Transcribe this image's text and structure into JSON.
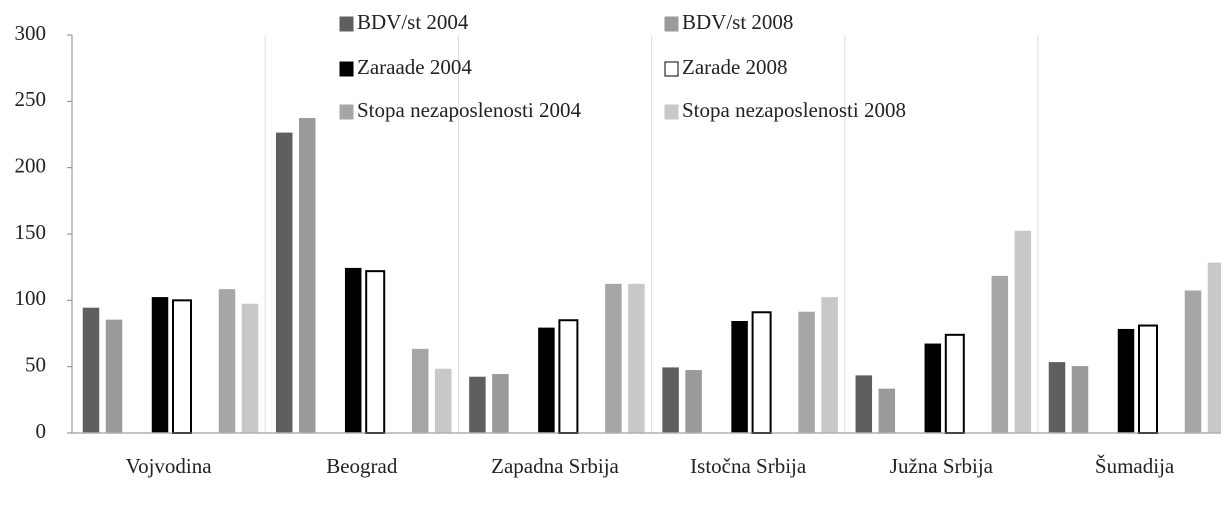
{
  "chart_data": {
    "type": "bar",
    "categories": [
      "Vojvodina",
      "Beograd",
      "Zapadna Srbija",
      "Istočna Srbija",
      "Južna Srbija",
      "Šumadija"
    ],
    "series": [
      {
        "name": "BDV/st 2004",
        "color": "#5f5f5f",
        "values": [
          95,
          227,
          43,
          50,
          44,
          54
        ]
      },
      {
        "name": "BDV/st 2008",
        "color": "#9a9a9a",
        "values": [
          86,
          238,
          45,
          48,
          34,
          51
        ]
      },
      {
        "name": "Zaraade 2004",
        "color": "#000000",
        "values": [
          103,
          125,
          80,
          85,
          68,
          79
        ]
      },
      {
        "name": "Zarade 2008",
        "color": "#ffffff",
        "values": [
          100,
          122,
          85,
          91,
          74,
          81
        ]
      },
      {
        "name": "Stopa nezaposlenosti 2004",
        "color": "#a6a6a6",
        "values": [
          109,
          64,
          113,
          92,
          119,
          108
        ]
      },
      {
        "name": "Stopa nezaposlenosti 2008",
        "color": "#c8c8c8",
        "values": [
          98,
          49,
          113,
          103,
          153,
          129
        ]
      }
    ],
    "ylim": [
      0,
      300
    ],
    "yticks": [
      0,
      50,
      100,
      150,
      200,
      250,
      300
    ]
  }
}
